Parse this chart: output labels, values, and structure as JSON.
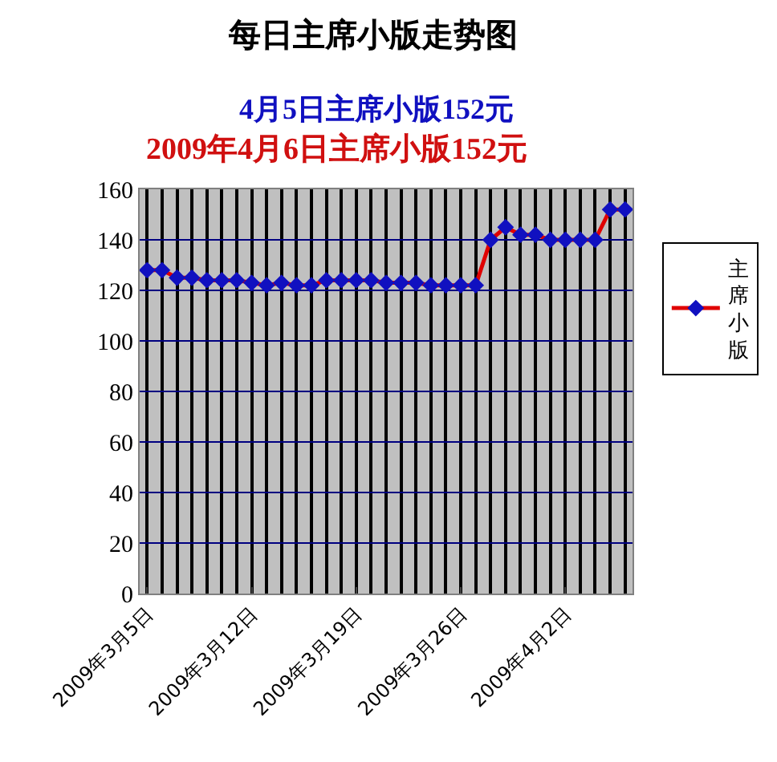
{
  "chart_data": {
    "type": "line",
    "title": "每日主席小版走势图",
    "subtitle": "4月5日主席小版152元",
    "annotations": [
      "2009年4月6日主席小版152元"
    ],
    "x": [
      "2009-03-05",
      "2009-03-06",
      "2009-03-07",
      "2009-03-08",
      "2009-03-09",
      "2009-03-10",
      "2009-03-11",
      "2009-03-12",
      "2009-03-13",
      "2009-03-14",
      "2009-03-15",
      "2009-03-16",
      "2009-03-17",
      "2009-03-18",
      "2009-03-19",
      "2009-03-20",
      "2009-03-21",
      "2009-03-22",
      "2009-03-23",
      "2009-03-24",
      "2009-03-25",
      "2009-03-26",
      "2009-03-27",
      "2009-03-28",
      "2009-03-29",
      "2009-03-30",
      "2009-03-31",
      "2009-04-01",
      "2009-04-02",
      "2009-04-03",
      "2009-04-04",
      "2009-04-05",
      "2009-04-06"
    ],
    "series": [
      {
        "name": "主席小版",
        "color": "#e00000",
        "values": [
          128,
          128,
          125,
          125,
          124,
          124,
          124,
          123,
          122,
          123,
          122,
          122,
          124,
          124,
          124,
          124,
          123,
          123,
          123,
          122,
          122,
          122,
          122,
          140,
          145,
          142,
          142,
          140,
          140,
          140,
          140,
          152,
          152
        ]
      }
    ],
    "xlim": [
      "2009-03-04T12:00",
      "2009-04-06T12:00"
    ],
    "xticks": [
      {
        "value": "2009-03-05",
        "label": "2009年3月5日"
      },
      {
        "value": "2009-03-12",
        "label": "2009年3月12日"
      },
      {
        "value": "2009-03-19",
        "label": "2009年3月19日"
      },
      {
        "value": "2009-03-26",
        "label": "2009年3月26日"
      },
      {
        "value": "2009-04-02",
        "label": "2009年4月2日"
      }
    ],
    "ylim": [
      0,
      160
    ],
    "yticks": [
      0,
      20,
      40,
      60,
      80,
      100,
      120,
      140,
      160
    ],
    "grid": true,
    "legend": "right",
    "marker": "diamond",
    "line_style": "solid"
  }
}
